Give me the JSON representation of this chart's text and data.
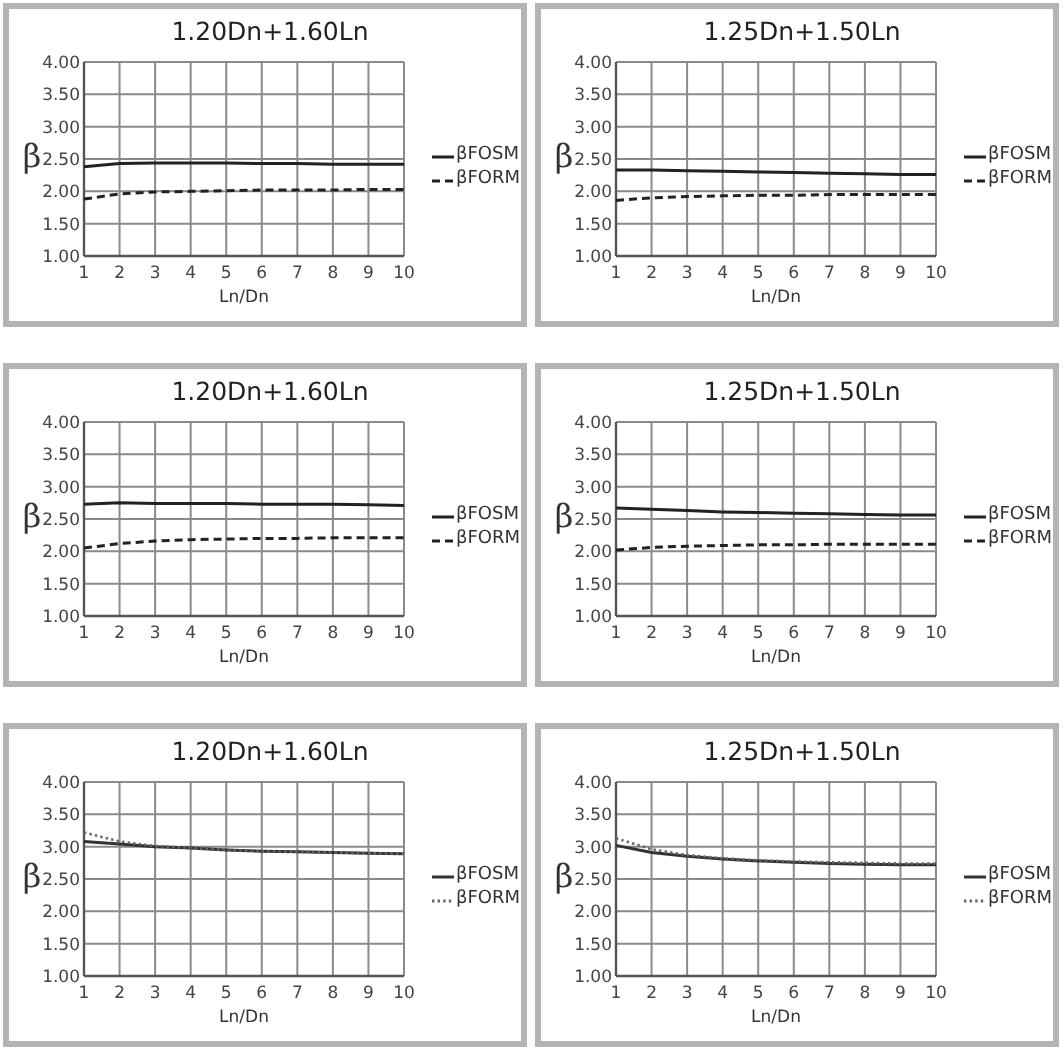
{
  "chart_data": [
    {
      "type": "line",
      "title": "1.20Dn+1.60Ln",
      "xlabel": "Ln/Dn",
      "ylabel": "β",
      "x": [
        1,
        2,
        3,
        4,
        5,
        6,
        7,
        8,
        9,
        10
      ],
      "series": [
        {
          "name": "βFOSM",
          "color": "#222222",
          "line_style": "solid",
          "values": [
            2.38,
            2.43,
            2.44,
            2.44,
            2.44,
            2.43,
            2.43,
            2.42,
            2.42,
            2.42
          ]
        },
        {
          "name": "βFORM",
          "color": "#222222",
          "line_style": "dashed",
          "values": [
            1.88,
            1.96,
            1.99,
            2.0,
            2.01,
            2.02,
            2.02,
            2.02,
            2.03,
            2.03
          ]
        }
      ],
      "xlim": [
        1,
        10
      ],
      "xticks": [
        1,
        2,
        3,
        4,
        5,
        6,
        7,
        8,
        9,
        10
      ],
      "ylim": [
        1,
        4
      ],
      "yticks": [
        {
          "value": 1,
          "label": "1.00"
        },
        {
          "value": 1.5,
          "label": "1.50"
        },
        {
          "value": 2,
          "label": "2.00"
        },
        {
          "value": 2.5,
          "label": "2.50"
        },
        {
          "value": 3,
          "label": "3.00"
        },
        {
          "value": 3.5,
          "label": "3.50"
        },
        {
          "value": 4,
          "label": "4.00"
        }
      ],
      "grid": true,
      "legend": "right"
    },
    {
      "type": "line",
      "title": "1.25Dn+1.50Ln",
      "xlabel": "Ln/Dn",
      "ylabel": "β",
      "x": [
        1,
        2,
        3,
        4,
        5,
        6,
        7,
        8,
        9,
        10
      ],
      "series": [
        {
          "name": "βFOSM",
          "color": "#222222",
          "line_style": "solid",
          "values": [
            2.33,
            2.33,
            2.32,
            2.31,
            2.3,
            2.29,
            2.28,
            2.27,
            2.26,
            2.26
          ]
        },
        {
          "name": "βFORM",
          "color": "#222222",
          "line_style": "dashed",
          "values": [
            1.86,
            1.9,
            1.92,
            1.93,
            1.94,
            1.94,
            1.95,
            1.95,
            1.95,
            1.95
          ]
        }
      ],
      "xlim": [
        1,
        10
      ],
      "xticks": [
        1,
        2,
        3,
        4,
        5,
        6,
        7,
        8,
        9,
        10
      ],
      "ylim": [
        1,
        4
      ],
      "yticks": [
        {
          "value": 1,
          "label": "1.00"
        },
        {
          "value": 1.5,
          "label": "1.50"
        },
        {
          "value": 2,
          "label": "2.00"
        },
        {
          "value": 2.5,
          "label": "2.50"
        },
        {
          "value": 3,
          "label": "3.00"
        },
        {
          "value": 3.5,
          "label": "3.50"
        },
        {
          "value": 4,
          "label": "4.00"
        }
      ],
      "grid": true,
      "legend": "right"
    },
    {
      "type": "line",
      "title": "1.20Dn+1.60Ln",
      "xlabel": "Ln/Dn",
      "ylabel": "β",
      "x": [
        1,
        2,
        3,
        4,
        5,
        6,
        7,
        8,
        9,
        10
      ],
      "series": [
        {
          "name": "βFOSM",
          "color": "#222222",
          "line_style": "solid",
          "values": [
            2.73,
            2.75,
            2.74,
            2.74,
            2.74,
            2.73,
            2.73,
            2.73,
            2.72,
            2.71
          ]
        },
        {
          "name": "βFORM",
          "color": "#222222",
          "line_style": "dashed",
          "values": [
            2.05,
            2.12,
            2.16,
            2.18,
            2.19,
            2.2,
            2.2,
            2.21,
            2.21,
            2.21
          ]
        }
      ],
      "xlim": [
        1,
        10
      ],
      "xticks": [
        1,
        2,
        3,
        4,
        5,
        6,
        7,
        8,
        9,
        10
      ],
      "ylim": [
        1,
        4
      ],
      "yticks": [
        {
          "value": 1,
          "label": "1.00"
        },
        {
          "value": 1.5,
          "label": "1.50"
        },
        {
          "value": 2,
          "label": "2.00"
        },
        {
          "value": 2.5,
          "label": "2.50"
        },
        {
          "value": 3,
          "label": "3.00"
        },
        {
          "value": 3.5,
          "label": "3.50"
        },
        {
          "value": 4,
          "label": "4.00"
        }
      ],
      "grid": true,
      "legend": "right"
    },
    {
      "type": "line",
      "title": "1.25Dn+1.50Ln",
      "xlabel": "Ln/Dn",
      "ylabel": "β",
      "x": [
        1,
        2,
        3,
        4,
        5,
        6,
        7,
        8,
        9,
        10
      ],
      "series": [
        {
          "name": "βFOSM",
          "color": "#222222",
          "line_style": "solid",
          "values": [
            2.67,
            2.65,
            2.63,
            2.61,
            2.6,
            2.59,
            2.58,
            2.57,
            2.56,
            2.56
          ]
        },
        {
          "name": "βFORM",
          "color": "#222222",
          "line_style": "dashed",
          "values": [
            2.02,
            2.06,
            2.08,
            2.09,
            2.1,
            2.1,
            2.11,
            2.11,
            2.11,
            2.11
          ]
        }
      ],
      "xlim": [
        1,
        10
      ],
      "xticks": [
        1,
        2,
        3,
        4,
        5,
        6,
        7,
        8,
        9,
        10
      ],
      "ylim": [
        1,
        4
      ],
      "yticks": [
        {
          "value": 1,
          "label": "1.00"
        },
        {
          "value": 1.5,
          "label": "1.50"
        },
        {
          "value": 2,
          "label": "2.00"
        },
        {
          "value": 2.5,
          "label": "2.50"
        },
        {
          "value": 3,
          "label": "3.00"
        },
        {
          "value": 3.5,
          "label": "3.50"
        },
        {
          "value": 4,
          "label": "4.00"
        }
      ],
      "grid": true,
      "legend": "right"
    },
    {
      "type": "line",
      "title": "1.20Dn+1.60Ln",
      "xlabel": "Ln/Dn",
      "ylabel": "β",
      "x": [
        1,
        2,
        3,
        4,
        5,
        6,
        7,
        8,
        9,
        10
      ],
      "series": [
        {
          "name": "βFOSM",
          "color": "#333333",
          "line_style": "solid",
          "values": [
            3.08,
            3.04,
            3.0,
            2.98,
            2.95,
            2.93,
            2.92,
            2.91,
            2.9,
            2.89
          ]
        },
        {
          "name": "βFORM",
          "color": "#666666",
          "line_style": "dotted",
          "values": [
            3.22,
            3.08,
            3.01,
            2.98,
            2.95,
            2.93,
            2.92,
            2.91,
            2.9,
            2.89
          ]
        }
      ],
      "xlim": [
        1,
        10
      ],
      "xticks": [
        1,
        2,
        3,
        4,
        5,
        6,
        7,
        8,
        9,
        10
      ],
      "ylim": [
        1,
        4
      ],
      "yticks": [
        {
          "value": 1,
          "label": "1.00"
        },
        {
          "value": 1.5,
          "label": "1.50"
        },
        {
          "value": 2,
          "label": "2.00"
        },
        {
          "value": 2.5,
          "label": "2.50"
        },
        {
          "value": 3,
          "label": "3.00"
        },
        {
          "value": 3.5,
          "label": "3.50"
        },
        {
          "value": 4,
          "label": "4.00"
        }
      ],
      "grid": true,
      "legend": "right"
    },
    {
      "type": "line",
      "title": "1.25Dn+1.50Ln",
      "xlabel": "Ln/Dn",
      "ylabel": "β",
      "x": [
        1,
        2,
        3,
        4,
        5,
        6,
        7,
        8,
        9,
        10
      ],
      "series": [
        {
          "name": "βFOSM",
          "color": "#333333",
          "line_style": "solid",
          "values": [
            3.02,
            2.91,
            2.85,
            2.81,
            2.78,
            2.76,
            2.74,
            2.73,
            2.72,
            2.72
          ]
        },
        {
          "name": "βFORM",
          "color": "#666666",
          "line_style": "dotted",
          "values": [
            3.13,
            2.96,
            2.87,
            2.82,
            2.79,
            2.77,
            2.76,
            2.75,
            2.74,
            2.74
          ]
        }
      ],
      "xlim": [
        1,
        10
      ],
      "xticks": [
        1,
        2,
        3,
        4,
        5,
        6,
        7,
        8,
        9,
        10
      ],
      "ylim": [
        1,
        4
      ],
      "yticks": [
        {
          "value": 1,
          "label": "1.00"
        },
        {
          "value": 1.5,
          "label": "1.50"
        },
        {
          "value": 2,
          "label": "2.00"
        },
        {
          "value": 2.5,
          "label": "2.50"
        },
        {
          "value": 3,
          "label": "3.00"
        },
        {
          "value": 3.5,
          "label": "3.50"
        },
        {
          "value": 4,
          "label": "4.00"
        }
      ],
      "grid": true,
      "legend": "right"
    }
  ]
}
